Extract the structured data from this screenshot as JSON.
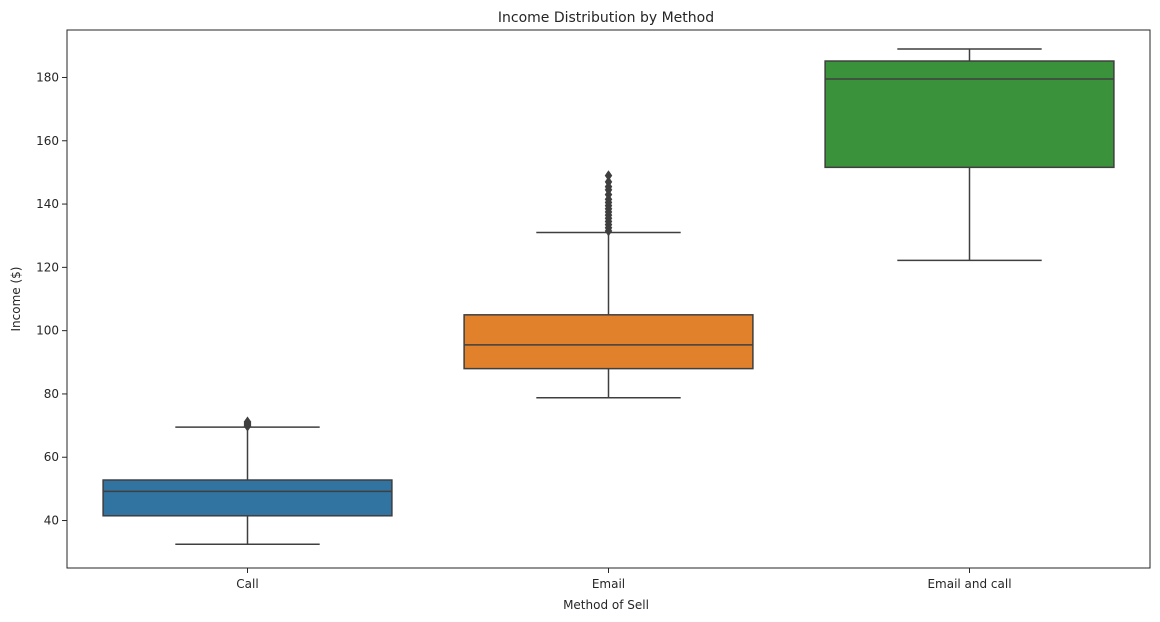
{
  "chart_data": {
    "type": "box",
    "title": "Income Distribution by Method",
    "xlabel": "Method of Sell",
    "ylabel": "Income ($)",
    "ylim": [
      25,
      195
    ],
    "yticks": [
      40,
      60,
      80,
      100,
      120,
      140,
      160,
      180
    ],
    "grid": false,
    "legend": "none",
    "categories": [
      "Call",
      "Email",
      "Email and call"
    ],
    "boxes": [
      {
        "category": "Call",
        "color": "#3274a1",
        "whisker_low": 32.5,
        "q1": 41.5,
        "median": 49.2,
        "q3": 52.8,
        "whisker_high": 69.5,
        "outliers": [
          69.8,
          70.1,
          70.4,
          70.7,
          71.0,
          71.2
        ]
      },
      {
        "category": "Email",
        "color": "#e1812c",
        "whisker_low": 78.8,
        "q1": 88.0,
        "median": 95.5,
        "q3": 105.0,
        "whisker_high": 131.0,
        "outliers": [
          131.5,
          132.5,
          133.5,
          134.5,
          135.5,
          136.5,
          137.5,
          138.5,
          139.5,
          140.5,
          141.5,
          143.0,
          144.5,
          145.5,
          147.0,
          149.0
        ]
      },
      {
        "category": "Email and call",
        "color": "#3a923a",
        "whisker_low": 122.2,
        "q1": 151.6,
        "median": 179.5,
        "q3": 185.2,
        "whisker_high": 189.0,
        "outliers": []
      }
    ]
  }
}
